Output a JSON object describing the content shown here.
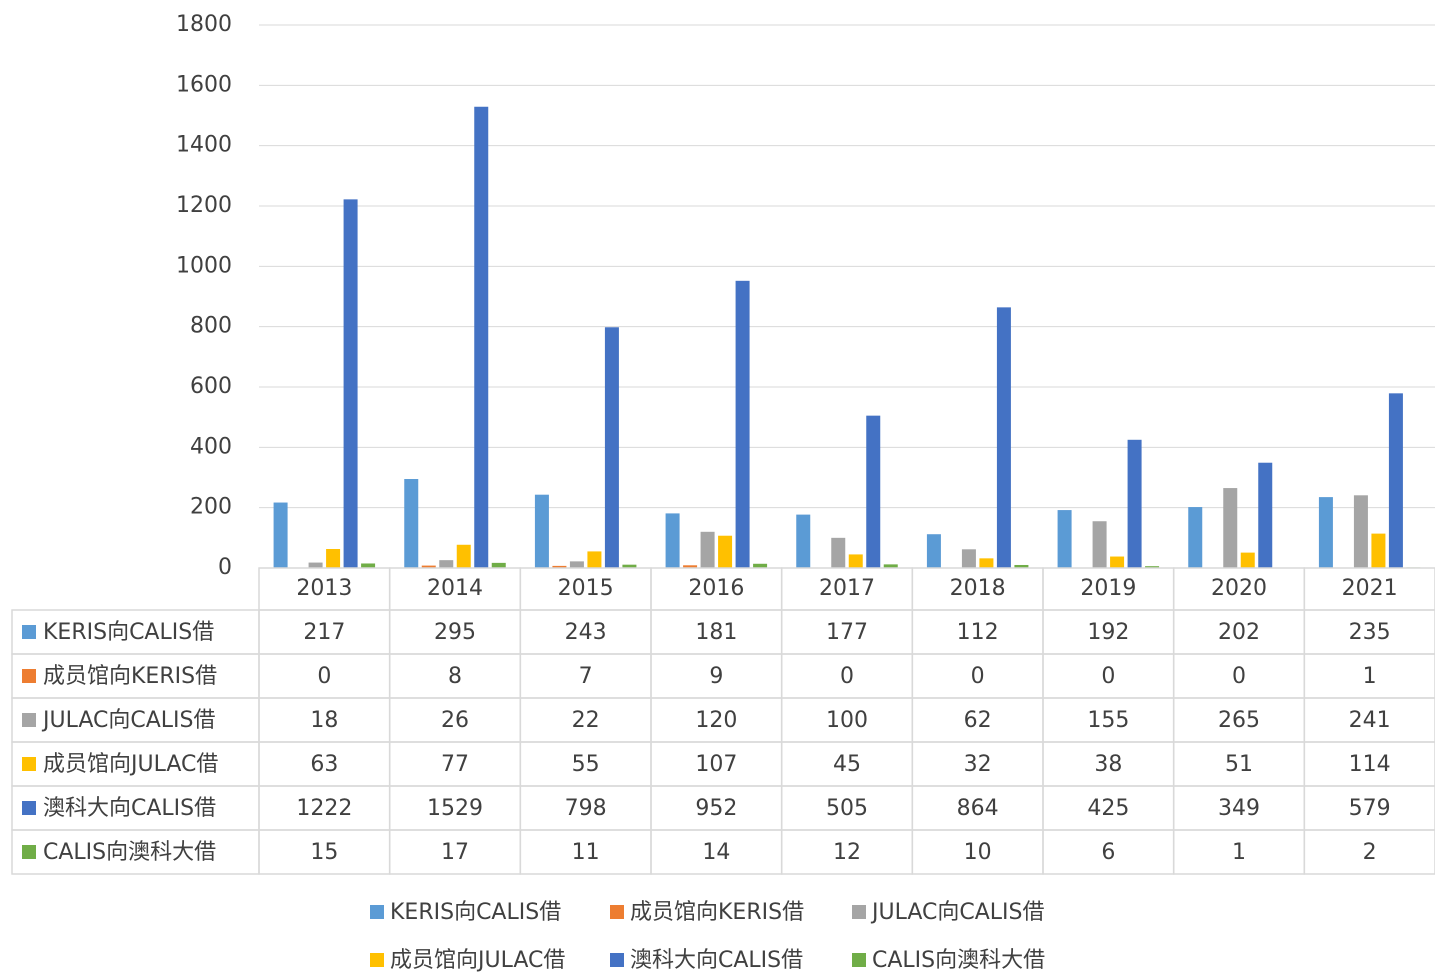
{
  "chart_data": {
    "type": "bar",
    "categories": [
      "2013",
      "2014",
      "2015",
      "2016",
      "2017",
      "2018",
      "2019",
      "2020",
      "2021"
    ],
    "series": [
      {
        "name": "KERIS向CALIS借",
        "color": "#5b9bd5",
        "values": [
          217,
          295,
          243,
          181,
          177,
          112,
          192,
          202,
          235
        ]
      },
      {
        "name": "成员馆向KERIS借",
        "color": "#ed7d31",
        "values": [
          0,
          8,
          7,
          9,
          0,
          0,
          0,
          0,
          1
        ]
      },
      {
        "name": "JULAC向CALIS借",
        "color": "#a5a5a5",
        "values": [
          18,
          26,
          22,
          120,
          100,
          62,
          155,
          265,
          241
        ]
      },
      {
        "name": "成员馆向JULAC借",
        "color": "#ffc000",
        "values": [
          63,
          77,
          55,
          107,
          45,
          32,
          38,
          51,
          114
        ]
      },
      {
        "name": "澳科大向CALIS借",
        "color": "#4472c4",
        "values": [
          1222,
          1529,
          798,
          952,
          505,
          864,
          425,
          349,
          579
        ]
      },
      {
        "name": "CALIS向澳科大借",
        "color": "#70ad47",
        "values": [
          15,
          17,
          11,
          14,
          12,
          10,
          6,
          1,
          2
        ]
      }
    ],
    "ylim": [
      0,
      1800
    ],
    "yticks": [
      0,
      200,
      400,
      600,
      800,
      1000,
      1200,
      1400,
      1600,
      1800
    ],
    "grid": true,
    "legend": "bottom",
    "data_table": true
  }
}
